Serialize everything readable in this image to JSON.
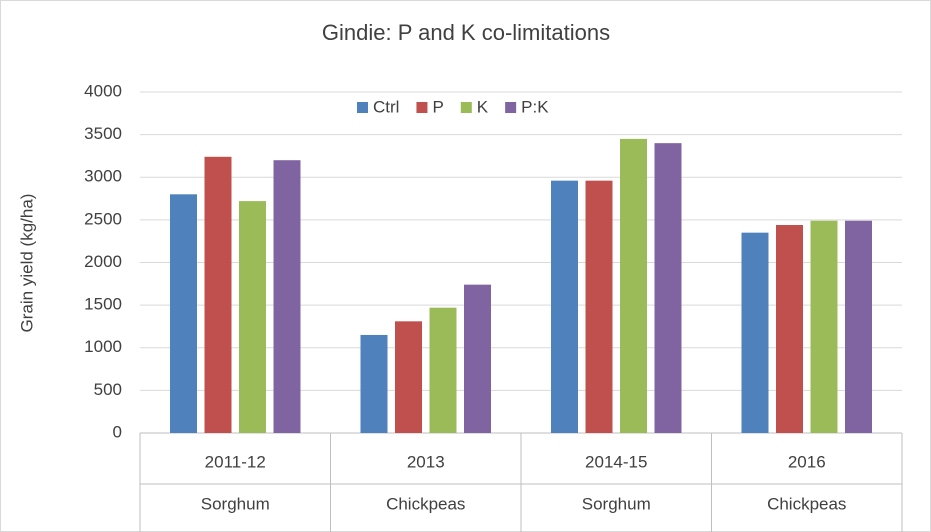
{
  "chart_data": {
    "type": "bar",
    "title": "Gindie:  P and K co-limitations",
    "y_label": "Grain yield (kg/ha)",
    "categories": [
      "2011-12",
      "2013",
      "2014-15",
      "2016"
    ],
    "subcategories": [
      "Sorghum",
      "Chickpeas",
      "Sorghum",
      "Chickpeas"
    ],
    "series": [
      {
        "name": "Ctrl",
        "color": "#4f81bd",
        "values": [
          2800,
          1150,
          2960,
          2350
        ]
      },
      {
        "name": "P",
        "color": "#c0504d",
        "values": [
          3240,
          1310,
          2960,
          2440
        ]
      },
      {
        "name": "K",
        "color": "#9bbb59",
        "values": [
          2720,
          1470,
          3450,
          2490
        ]
      },
      {
        "name": "P:K",
        "color": "#8064a2",
        "values": [
          3200,
          1740,
          3400,
          2490
        ]
      }
    ],
    "ylim": [
      0,
      4000
    ],
    "yticks": [
      0,
      500,
      1000,
      1500,
      2000,
      2500,
      3000,
      3500,
      4000
    ],
    "grid": true,
    "legend": "top"
  }
}
